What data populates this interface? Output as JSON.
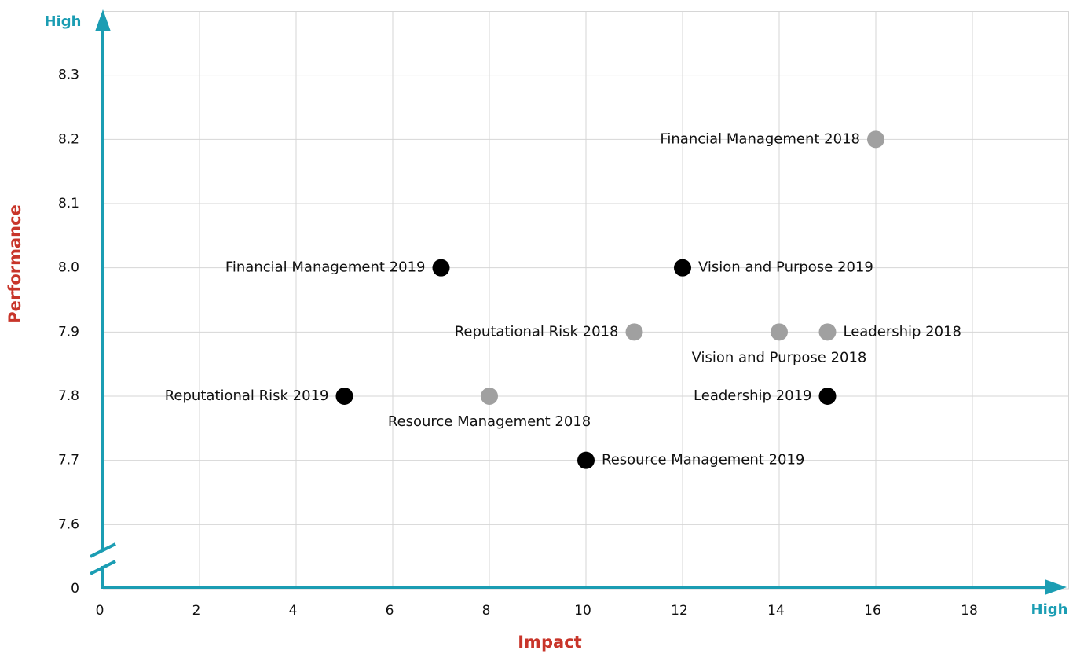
{
  "chart_data": {
    "type": "scatter",
    "x_label": "Impact",
    "y_label": "Performance",
    "x_end_label": "High",
    "y_end_label": "High",
    "xlim": [
      0,
      20
    ],
    "xticks": [
      0,
      2,
      4,
      6,
      8,
      10,
      12,
      14,
      16,
      18
    ],
    "ylim": [
      0,
      8.4
    ],
    "y_axis_break": [
      0,
      7.5
    ],
    "yticks": [
      0,
      7.6,
      7.7,
      7.8,
      7.9,
      {
        "value": 8.0,
        "label": "8.0"
      },
      8.1,
      8.2,
      8.3
    ],
    "grid": true,
    "axis_color": "#1b9db3",
    "axis_label_color": "#c8352a",
    "series": [
      {
        "color": "#000000",
        "labels": [
          "Financial Management 2019",
          "Vision and Purpose 2019",
          "Reputational Risk 2019",
          "Leadership 2019",
          "Resource Management 2019"
        ],
        "x": [
          7,
          12,
          5,
          15,
          10
        ],
        "y": [
          8.0,
          8.0,
          7.8,
          7.8,
          7.7
        ]
      },
      {
        "color": "#a0a0a0",
        "labels": [
          "Financial Management 2018",
          "Reputational Risk 2018",
          "Vision and Purpose 2018",
          "Leadership 2018",
          "Resource Management 2018"
        ],
        "x": [
          16,
          11,
          14,
          15,
          8
        ],
        "y": [
          8.2,
          7.9,
          7.9,
          7.9,
          7.8
        ]
      }
    ]
  }
}
